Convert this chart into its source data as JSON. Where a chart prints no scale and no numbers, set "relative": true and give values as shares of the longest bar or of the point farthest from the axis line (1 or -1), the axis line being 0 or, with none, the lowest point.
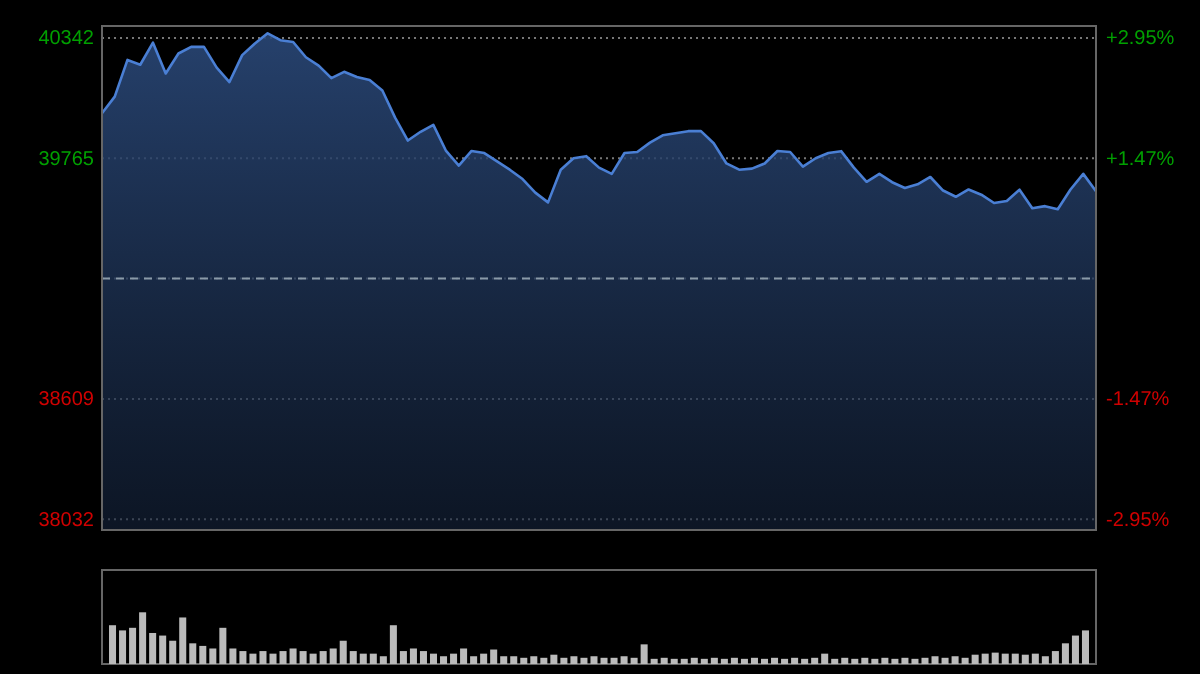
{
  "chart_data": [
    {
      "type": "area",
      "categories": [
        null,
        null,
        null,
        null,
        null,
        null,
        null,
        null,
        null,
        null,
        null,
        null,
        null,
        null,
        null,
        null,
        null,
        null,
        null,
        null,
        null,
        null,
        null,
        null,
        null,
        null,
        null,
        null,
        null,
        null,
        null,
        null,
        null,
        null,
        null,
        null,
        null,
        null,
        null,
        null,
        null,
        null,
        null,
        null,
        null,
        null,
        null,
        null,
        null,
        null,
        null,
        null,
        null,
        null,
        null,
        null,
        null,
        null,
        null,
        null,
        null,
        null,
        null,
        null,
        null,
        null,
        null,
        null,
        null,
        null,
        null,
        null,
        null,
        null,
        null,
        null,
        null,
        null,
        null
      ],
      "series": [
        {
          "color": "#4a7fd4",
          "values": [
            39981,
            40061,
            40237,
            40214,
            40320,
            40172,
            40268,
            40300,
            40300,
            40200,
            40131,
            40260,
            40316,
            40365,
            40332,
            40323,
            40250,
            40210,
            40150,
            40180,
            40155,
            40141,
            40090,
            39960,
            39850,
            39892,
            39925,
            39800,
            39730,
            39800,
            39790,
            39750,
            39710,
            39665,
            39600,
            39553,
            39710,
            39765,
            39775,
            39720,
            39690,
            39790,
            39795,
            39840,
            39875,
            39885,
            39895,
            39895,
            39837,
            39740,
            39710,
            39715,
            39740,
            39800,
            39795,
            39725,
            39765,
            39790,
            39799,
            39720,
            39652,
            39690,
            39650,
            39622,
            39640,
            39675,
            39610,
            39580,
            39615,
            39590,
            39550,
            39560,
            39614,
            39525,
            39535,
            39520,
            39615,
            39690,
            39607
          ]
        }
      ],
      "ylim": [
        37980,
        40400
      ],
      "yticks": [
        40342,
        39765,
        {
          "value": 39187,
          "label": null
        },
        38609,
        38032
      ],
      "y2lim": [
        -3.08,
        3.095
      ],
      "y2ticks": [
        {
          "value": 2.95,
          "label": "+2.95%"
        },
        {
          "value": 1.47,
          "label": "+1.47%"
        },
        {
          "value": 0,
          "label": null
        },
        {
          "value": -1.47,
          "label": "-1.47%"
        },
        {
          "value": -2.95,
          "label": "-2.95%"
        }
      ],
      "ref_lines": [
        {
          "axis": "y",
          "value": 39187,
          "line_style": "dashed",
          "color": "#8a9aa8"
        }
      ],
      "grid": "y"
    },
    {
      "type": "bar",
      "relative": true,
      "series": [
        {
          "color": "#bbbbbb",
          "values": [
            0.75,
            0.65,
            0.7,
            1.0,
            0.6,
            0.55,
            0.45,
            0.9,
            0.4,
            0.35,
            0.3,
            0.7,
            0.3,
            0.25,
            0.2,
            0.25,
            0.2,
            0.25,
            0.3,
            0.25,
            0.2,
            0.25,
            0.3,
            0.45,
            0.25,
            0.2,
            0.2,
            0.15,
            0.75,
            0.25,
            0.3,
            0.25,
            0.2,
            0.15,
            0.2,
            0.3,
            0.15,
            0.2,
            0.28,
            0.15,
            0.15,
            0.12,
            0.15,
            0.12,
            0.18,
            0.12,
            0.15,
            0.12,
            0.15,
            0.12,
            0.12,
            0.15,
            0.12,
            0.38,
            0.1,
            0.12,
            0.1,
            0.1,
            0.12,
            0.1,
            0.12,
            0.1,
            0.12,
            0.1,
            0.12,
            0.1,
            0.12,
            0.1,
            0.12,
            0.1,
            0.12,
            0.2,
            0.1,
            0.12,
            0.1,
            0.12,
            0.1,
            0.12,
            0.1,
            0.12,
            0.1,
            0.12,
            0.15,
            0.12,
            0.15,
            0.12,
            0.18,
            0.2,
            0.22,
            0.2,
            0.2,
            0.18,
            0.2,
            0.15,
            0.25,
            0.4,
            0.55,
            0.65
          ]
        }
      ],
      "categories": [
        null,
        null,
        null,
        null,
        null,
        null,
        null,
        null,
        null,
        null,
        null,
        null,
        null,
        null,
        null,
        null,
        null,
        null,
        null,
        null,
        null,
        null,
        null,
        null,
        null,
        null,
        null,
        null,
        null,
        null,
        null,
        null,
        null,
        null,
        null,
        null,
        null,
        null,
        null,
        null,
        null,
        null,
        null,
        null,
        null,
        null,
        null,
        null,
        null,
        null,
        null,
        null,
        null,
        null,
        null,
        null,
        null,
        null,
        null,
        null,
        null,
        null,
        null,
        null,
        null,
        null,
        null,
        null,
        null,
        null,
        null,
        null,
        null,
        null,
        null,
        null,
        null,
        null,
        null,
        null,
        null,
        null,
        null,
        null,
        null,
        null,
        null,
        null,
        null,
        null,
        null,
        null,
        null,
        null,
        null,
        null,
        null,
        null
      ]
    }
  ]
}
